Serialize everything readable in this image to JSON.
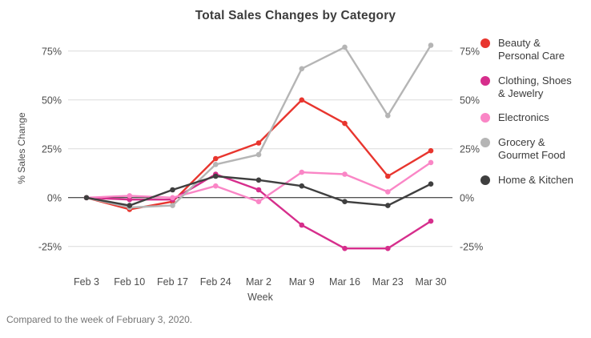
{
  "caption": "Compared to the week of February 3, 2020.",
  "chart_data": {
    "type": "line",
    "title": "Total Sales Changes by Category",
    "xlabel": "Week",
    "ylabel": "% Sales Change",
    "categories": [
      "Feb 3",
      "Feb 10",
      "Feb 17",
      "Feb 24",
      "Mar 2",
      "Mar 9",
      "Mar 16",
      "Mar 23",
      "Mar 30"
    ],
    "yticks": [
      75,
      50,
      25,
      0,
      -25
    ],
    "ytick_labels": [
      "75%",
      "50%",
      "25%",
      "0%",
      "-25%"
    ],
    "ylim": [
      -32,
      84
    ],
    "grid": true,
    "zero_line": true,
    "dual_y_axis_labels": true,
    "legend_position": "right",
    "colors": {
      "grid": "#dcdcdc",
      "zero_line": "#1a1a1a",
      "tick_text": "#4d4d4d"
    },
    "series": [
      {
        "name": "Beauty & Personal Care",
        "legend_lines": [
          "Beauty &",
          "Personal Care"
        ],
        "color": "#e8352e",
        "values": [
          0,
          -6,
          -2,
          20,
          28,
          50,
          38,
          11,
          24
        ]
      },
      {
        "name": "Clothing, Shoes & Jewelry",
        "legend_lines": [
          "Clothing, Shoes",
          "& Jewelry"
        ],
        "color": "#d62e8c",
        "values": [
          0,
          -1,
          -1,
          12,
          4,
          -14,
          -26,
          -26,
          -12
        ]
      },
      {
        "name": "Electronics",
        "legend_lines": [
          "Electronics"
        ],
        "color": "#fa86c6",
        "values": [
          0,
          1,
          0,
          6,
          -2,
          13,
          12,
          3,
          18
        ]
      },
      {
        "name": "Grocery & Gourmet Food",
        "legend_lines": [
          "Grocery &",
          "Gourmet Food"
        ],
        "color": "#b5b5b5",
        "values": [
          0,
          -5,
          -4,
          17,
          22,
          66,
          77,
          42,
          78
        ]
      },
      {
        "name": "Home & Kitchen",
        "legend_lines": [
          "Home & Kitchen"
        ],
        "color": "#3f3f3f",
        "values": [
          0,
          -4,
          4,
          11,
          9,
          6,
          -2,
          -4,
          7
        ]
      }
    ]
  }
}
